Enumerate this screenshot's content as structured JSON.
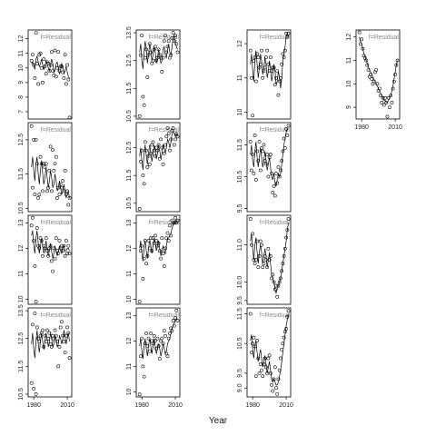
{
  "chart_data": {
    "type": "scatter",
    "xlabel": "Year",
    "strip_label": "f=Residual",
    "panels": [
      {
        "row": 0,
        "col": 0,
        "ylim": [
          6.5,
          12.6
        ],
        "yticks": [
          7,
          8,
          9,
          10,
          11,
          12
        ],
        "y": [
          10.5,
          10.9,
          10.2,
          9.3,
          12.4,
          10.3,
          8.9,
          10.9,
          11.0,
          10.0,
          9.0,
          10.6,
          10.1,
          9.6,
          10.4,
          10.3,
          9.8,
          10.2,
          11.1,
          9.8,
          9.5,
          11.2,
          9.4,
          10.0,
          11.1,
          9.8,
          10.1,
          10.1,
          9.7,
          9.3,
          10.9,
          8.9,
          10.2,
          9.2,
          6.6
        ],
        "fit": [
          10.3,
          10.4,
          10.2,
          9.9,
          10.6,
          10.8,
          10.4,
          10.1,
          10.3,
          10.6,
          10.2,
          9.9,
          10.1,
          10.5,
          10.3,
          10.0,
          9.8,
          10.2,
          10.6,
          10.3,
          9.7,
          9.8,
          10.3,
          10.4,
          10.0,
          9.6,
          9.8,
          10.3,
          10.1,
          9.6,
          9.8,
          10.1,
          9.7,
          9.4,
          9.3
        ]
      },
      {
        "row": 0,
        "col": 1,
        "ylim": [
          10.4,
          13.6
        ],
        "yticks": [
          10.5,
          11.5,
          12.5,
          13.5
        ],
        "y": [
          10.5,
          12.7,
          13.4,
          11.2,
          10.9,
          12.6,
          12.9,
          11.9,
          12.7,
          13.1,
          12.8,
          12.4,
          12.5,
          12.9,
          13.0,
          12.5,
          12.6,
          12.9,
          12.7,
          12.6,
          12.1,
          12.6,
          13.2,
          13.4,
          12.8,
          13.0,
          13.2,
          12.6,
          12.7,
          13.3,
          13.5,
          13.2,
          13.4,
          13.1,
          12.8
        ],
        "fit": [
          12.8,
          13.1,
          12.5,
          12.2,
          12.8,
          13.2,
          12.9,
          12.4,
          12.7,
          13.1,
          12.9,
          12.5,
          12.7,
          13.0,
          12.8,
          12.4,
          12.6,
          12.9,
          12.7,
          12.4,
          12.5,
          12.9,
          13.0,
          12.7,
          12.6,
          12.9,
          13.1,
          12.8,
          12.7,
          13.0,
          13.3,
          13.4,
          13.1,
          13.0,
          12.9
        ]
      },
      {
        "row": 0,
        "col": 2,
        "ylim": [
          9.8,
          12.4
        ],
        "yticks": [
          10.0,
          11.0,
          12.0
        ],
        "y": [
          11.8,
          11.0,
          9.9,
          11.5,
          11.6,
          10.9,
          11.7,
          11.6,
          11.3,
          11.4,
          11.8,
          11.0,
          11.2,
          11.3,
          11.6,
          11.8,
          11.4,
          11.2,
          11.6,
          11.2,
          11.3,
          11.3,
          10.8,
          11.0,
          11.2,
          10.5,
          10.9,
          11.0,
          11.4,
          11.7,
          11.6,
          11.8,
          12.3,
          12.2,
          12.3
        ],
        "fit": [
          11.4,
          11.7,
          11.2,
          10.9,
          11.5,
          11.8,
          11.4,
          11.0,
          11.3,
          11.7,
          11.5,
          11.1,
          11.3,
          11.6,
          11.4,
          11.0,
          11.2,
          11.5,
          11.3,
          10.9,
          11.1,
          11.4,
          11.2,
          10.8,
          10.9,
          11.2,
          11.0,
          10.7,
          11.0,
          11.5,
          11.7,
          11.9,
          12.2,
          12.3,
          12.2
        ]
      },
      {
        "row": 0,
        "col": 3,
        "ylim": [
          8.5,
          12.3
        ],
        "yticks": [
          9,
          10,
          11,
          12
        ],
        "y": [
          12.2,
          11.7,
          11.9,
          11.5,
          11.2,
          11.1,
          11.0,
          10.8,
          10.6,
          10.3,
          10.4,
          10.2,
          10.0,
          10.1,
          10.5,
          10.6,
          10.0,
          9.7,
          9.8,
          9.5,
          9.2,
          9.4,
          9.1,
          9.4,
          9.2,
          8.6,
          9.4,
          9.0,
          9.5,
          9.2,
          9.8,
          10.1,
          10.4,
          10.8,
          11.0
        ],
        "fit": [
          12.0,
          11.8,
          11.7,
          11.5,
          11.3,
          11.2,
          11.0,
          10.9,
          10.7,
          10.6,
          10.5,
          10.4,
          10.3,
          10.2,
          10.1,
          10.0,
          9.9,
          9.8,
          9.7,
          9.6,
          9.5,
          9.4,
          9.3,
          9.3,
          9.2,
          9.2,
          9.3,
          9.4,
          9.5,
          9.7,
          9.9,
          10.2,
          10.5,
          10.8,
          11.0
        ]
      },
      {
        "row": 1,
        "col": 0,
        "ylim": [
          10.4,
          13.0
        ],
        "yticks": [
          10.5,
          11.5,
          12.5
        ],
        "y": [
          12.9,
          11.1,
          12.5,
          10.9,
          12.5,
          11.8,
          10.8,
          10.9,
          12.0,
          11.8,
          11.0,
          11.8,
          11.7,
          11.8,
          11.0,
          11.1,
          11.6,
          12.3,
          11.0,
          12.2,
          11.6,
          11.8,
          12.0,
          10.8,
          11.1,
          10.9,
          11.2,
          11.1,
          11.3,
          11.0,
          11.6,
          10.9,
          11.0,
          10.6,
          10.8
        ],
        "fit": [
          11.7,
          12.0,
          11.6,
          11.3,
          11.8,
          12.0,
          11.5,
          11.2,
          11.6,
          11.9,
          11.5,
          11.2,
          11.4,
          11.7,
          11.4,
          11.1,
          11.3,
          11.6,
          11.4,
          11.1,
          11.2,
          11.5,
          11.3,
          11.0,
          11.1,
          11.3,
          11.1,
          10.9,
          11.0,
          11.2,
          11.0,
          10.8,
          10.9,
          11.0,
          10.8
        ]
      },
      {
        "row": 1,
        "col": 1,
        "ylim": [
          10.2,
          13.4
        ],
        "yticks": [
          10.5,
          11.5,
          12.5
        ],
        "y": [
          10.3,
          12.0,
          12.4,
          11.5,
          11.2,
          12.7,
          12.4,
          11.8,
          12.2,
          11.9,
          12.3,
          12.6,
          12.7,
          12.4,
          12.2,
          12.5,
          12.4,
          12.6,
          12.1,
          12.8,
          12.5,
          11.9,
          12.3,
          12.6,
          12.9,
          13.2,
          13.0,
          12.4,
          12.8,
          13.1,
          13.2,
          12.6,
          12.8,
          13.0,
          12.9
        ],
        "fit": [
          12.2,
          12.5,
          12.0,
          11.7,
          12.3,
          12.6,
          12.2,
          11.9,
          12.3,
          12.6,
          12.3,
          12.0,
          12.3,
          12.6,
          12.4,
          12.1,
          12.3,
          12.6,
          12.4,
          12.1,
          12.3,
          12.6,
          12.5,
          12.3,
          12.5,
          12.8,
          12.7,
          12.5,
          12.7,
          13.0,
          13.1,
          13.0,
          12.9,
          13.0,
          12.9
        ]
      },
      {
        "row": 1,
        "col": 2,
        "ylim": [
          9.4,
          12.2
        ],
        "yticks": [
          9.5,
          10.5,
          11.5
        ],
        "y": [
          11.6,
          10.7,
          11.2,
          10.6,
          11.8,
          10.4,
          11.3,
          11.0,
          11.6,
          10.7,
          11.4,
          11.3,
          11.5,
          11.0,
          10.9,
          11.2,
          10.5,
          11.1,
          11.2,
          10.6,
          10.0,
          10.2,
          9.9,
          10.6,
          10.3,
          10.8,
          10.5,
          10.7,
          11.0,
          11.3,
          11.7,
          11.4,
          12.0,
          11.8,
          12.1
        ],
        "fit": [
          11.2,
          11.5,
          11.0,
          10.8,
          11.3,
          11.6,
          11.1,
          10.8,
          11.1,
          11.4,
          11.1,
          10.8,
          11.0,
          11.3,
          11.0,
          10.7,
          10.9,
          11.1,
          10.8,
          10.5,
          10.4,
          10.6,
          10.3,
          10.2,
          10.4,
          10.6,
          10.5,
          10.6,
          10.9,
          11.2,
          11.5,
          11.7,
          11.9,
          12.0,
          12.0
        ]
      },
      {
        "row": 2,
        "col": 0,
        "ylim": [
          9.8,
          13.3
        ],
        "yticks": [
          10.0,
          11.0,
          12.0,
          13.0
        ],
        "y": [
          12.9,
          13.2,
          12.3,
          11.3,
          9.9,
          12.8,
          12.1,
          12.0,
          12.4,
          12.3,
          11.7,
          12.1,
          12.0,
          12.4,
          11.9,
          11.7,
          12.0,
          12.1,
          11.5,
          11.1,
          12.0,
          11.6,
          12.4,
          11.9,
          11.8,
          12.3,
          12.0,
          12.1,
          11.9,
          12.1,
          11.7,
          12.3,
          11.8,
          12.1,
          11.8
        ],
        "fit": [
          12.5,
          12.7,
          12.1,
          11.8,
          12.4,
          12.7,
          12.2,
          11.8,
          12.1,
          12.4,
          12.1,
          11.8,
          12.0,
          12.3,
          12.0,
          11.7,
          11.9,
          12.2,
          11.9,
          11.6,
          11.8,
          12.1,
          11.9,
          11.7,
          11.9,
          12.1,
          11.9,
          11.8,
          12.0,
          12.1,
          11.9,
          11.9,
          12.0,
          12.0,
          11.9
        ]
      },
      {
        "row": 2,
        "col": 1,
        "ylim": [
          9.8,
          13.3
        ],
        "yticks": [
          10.0,
          11.0,
          12.0,
          13.0
        ],
        "y": [
          9.9,
          11.9,
          12.1,
          10.8,
          11.6,
          12.3,
          11.4,
          11.7,
          12.3,
          12.0,
          12.4,
          11.9,
          12.4,
          12.2,
          12.5,
          12.3,
          12.1,
          12.2,
          11.9,
          11.6,
          12.4,
          11.8,
          11.3,
          12.0,
          12.4,
          12.6,
          12.3,
          12.9,
          12.5,
          13.1,
          13.0,
          13.0,
          13.2,
          13.0,
          13.1
        ],
        "fit": [
          12.0,
          12.3,
          11.8,
          11.5,
          12.0,
          12.3,
          11.9,
          11.6,
          12.0,
          12.3,
          12.1,
          11.8,
          12.1,
          12.4,
          12.2,
          11.9,
          12.1,
          12.3,
          12.0,
          11.7,
          11.9,
          12.1,
          11.9,
          11.8,
          12.1,
          12.4,
          12.4,
          12.5,
          12.6,
          12.8,
          12.9,
          13.0,
          13.1,
          13.1,
          13.0
        ]
      },
      {
        "row": 2,
        "col": 2,
        "ylim": [
          9.4,
          11.8
        ],
        "yticks": [
          9.5,
          10.0,
          11.0
        ],
        "y": [
          11.7,
          11.0,
          11.3,
          10.6,
          10.5,
          10.6,
          11.1,
          10.4,
          10.7,
          11.1,
          11.0,
          10.4,
          10.5,
          10.7,
          10.6,
          10.4,
          10.9,
          10.6,
          10.7,
          10.1,
          10.2,
          10.0,
          9.8,
          9.9,
          9.6,
          9.9,
          10.0,
          10.1,
          10.3,
          10.5,
          10.7,
          10.9,
          11.2,
          11.4,
          11.7
        ],
        "fit": [
          11.1,
          11.3,
          10.9,
          10.6,
          11.0,
          11.2,
          10.8,
          10.5,
          10.8,
          11.0,
          10.8,
          10.5,
          10.7,
          10.9,
          10.7,
          10.4,
          10.6,
          10.8,
          10.5,
          10.2,
          10.1,
          10.0,
          9.8,
          9.7,
          9.8,
          9.9,
          10.0,
          10.1,
          10.3,
          10.5,
          10.7,
          10.9,
          11.1,
          11.4,
          11.6
        ]
      },
      {
        "row": 3,
        "col": 0,
        "ylim": [
          10.4,
          13.6
        ],
        "yticks": [
          10.5,
          11.5,
          12.5,
          13.5
        ],
        "y": [
          10.9,
          13.0,
          10.7,
          13.4,
          10.5,
          12.9,
          12.5,
          12.4,
          12.6,
          12.7,
          12.8,
          12.2,
          12.6,
          12.4,
          12.8,
          12.5,
          12.7,
          12.3,
          12.2,
          12.6,
          12.5,
          12.8,
          12.6,
          12.4,
          11.5,
          12.2,
          12.9,
          13.1,
          12.6,
          12.4,
          12.0,
          12.6,
          12.9,
          12.7,
          11.8
        ],
        "fit": [
          12.3,
          12.7,
          12.1,
          11.8,
          12.4,
          12.8,
          12.3,
          12.0,
          12.4,
          12.7,
          12.4,
          12.1,
          12.4,
          12.7,
          12.5,
          12.2,
          12.4,
          12.7,
          12.5,
          12.2,
          12.3,
          12.6,
          12.5,
          12.2,
          12.3,
          12.6,
          12.5,
          12.3,
          12.5,
          12.8,
          12.6,
          12.3,
          12.5,
          12.7,
          12.4
        ]
      },
      {
        "row": 3,
        "col": 1,
        "ylim": [
          9.8,
          13.3
        ],
        "yticks": [
          10.0,
          11.0,
          12.0,
          13.0
        ],
        "y": [
          9.9,
          11.4,
          12.1,
          11.0,
          10.6,
          11.9,
          12.3,
          11.8,
          12.1,
          11.6,
          12.3,
          12.0,
          11.9,
          12.2,
          12.0,
          11.7,
          12.1,
          11.8,
          11.3,
          12.0,
          12.1,
          11.9,
          12.4,
          12.2,
          11.5,
          11.4,
          12.1,
          12.3,
          12.5,
          12.4,
          12.8,
          12.6,
          12.9,
          13.2,
          12.8
        ],
        "fit": [
          11.8,
          12.1,
          11.6,
          11.3,
          11.8,
          12.1,
          11.7,
          11.4,
          11.8,
          12.1,
          11.8,
          11.5,
          11.8,
          12.1,
          11.8,
          11.5,
          11.7,
          11.9,
          11.7,
          11.4,
          11.6,
          11.9,
          11.7,
          11.5,
          11.6,
          11.9,
          12.0,
          12.1,
          12.3,
          12.5,
          12.6,
          12.7,
          12.8,
          12.9,
          12.9
        ]
      },
      {
        "row": 3,
        "col": 2,
        "ylim": [
          8.7,
          11.7
        ],
        "yticks": [
          9.0,
          9.5,
          10.5,
          11.5
        ],
        "y": [
          11.5,
          10.2,
          10.5,
          10.7,
          10.4,
          9.4,
          10.6,
          10.0,
          9.5,
          9.8,
          9.6,
          9.4,
          9.8,
          10.0,
          9.7,
          9.5,
          10.0,
          10.1,
          9.5,
          9.1,
          8.9,
          9.3,
          9.7,
          9.0,
          8.8,
          9.3,
          9.6,
          10.0,
          10.3,
          10.5,
          10.7,
          10.9,
          11.0,
          11.4,
          11.6
        ],
        "fit": [
          10.6,
          10.8,
          10.3,
          10.0,
          10.4,
          10.6,
          10.2,
          9.9,
          10.1,
          10.3,
          10.0,
          9.7,
          9.9,
          10.1,
          9.8,
          9.5,
          9.7,
          9.9,
          9.6,
          9.3,
          9.2,
          9.3,
          9.2,
          9.1,
          9.1,
          9.2,
          9.4,
          9.6,
          9.9,
          10.2,
          10.5,
          10.8,
          11.1,
          11.3,
          11.5
        ]
      }
    ],
    "x": [
      1978,
      1979,
      1980,
      1981,
      1982,
      1983,
      1984,
      1985,
      1986,
      1987,
      1988,
      1989,
      1990,
      1991,
      1992,
      1993,
      1994,
      1995,
      1996,
      1997,
      1998,
      1999,
      2000,
      2001,
      2002,
      2003,
      2004,
      2005,
      2006,
      2007,
      2008,
      2009,
      2010,
      2011,
      2012
    ],
    "xticks": [
      1980,
      2010
    ],
    "xticks_on_rows": {
      "col0": 3,
      "col1": 3,
      "col2": 3,
      "col3": 0
    }
  }
}
